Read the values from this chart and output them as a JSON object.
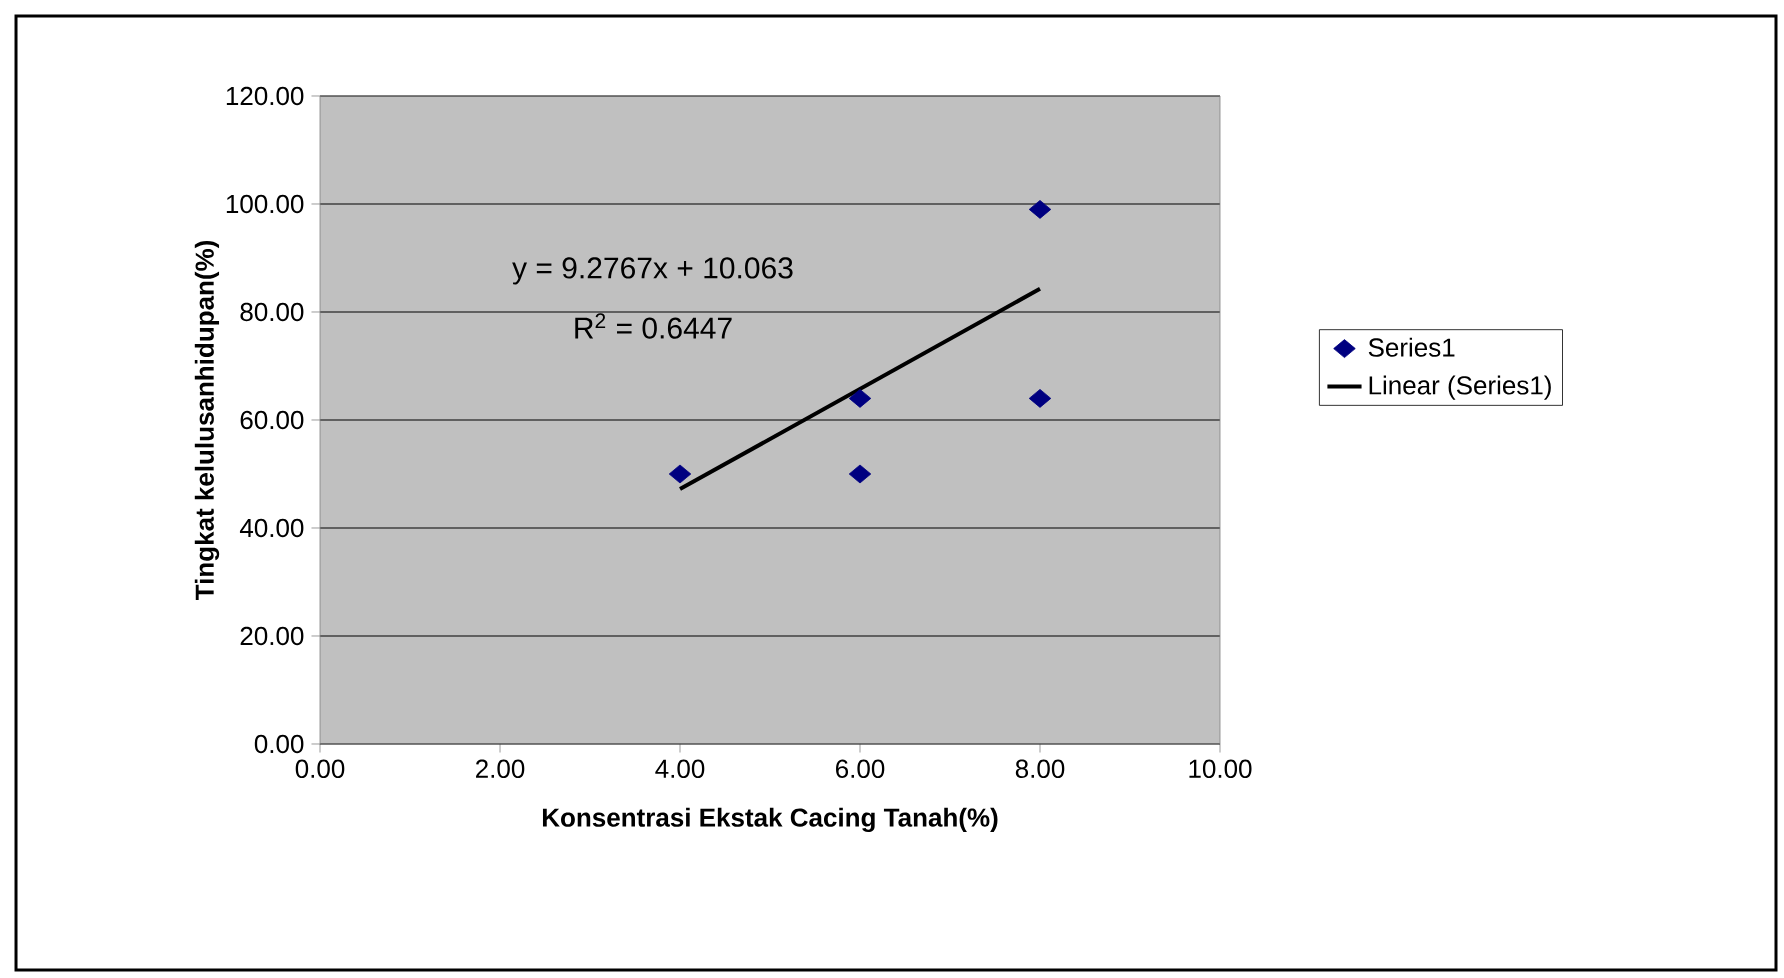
{
  "chart_data": {
    "type": "scatter",
    "xlabel": "Konsentrasi Ekstak Cacing Tanah(%)",
    "ylabel": "Tingkat kelulusanhidupan(%)",
    "series": [
      {
        "name": "Series1",
        "type": "scatter",
        "color": "#000080",
        "marker": "diamond",
        "x": [
          4,
          6,
          6,
          8,
          8
        ],
        "values": [
          50,
          64,
          50,
          99,
          64
        ]
      },
      {
        "name": "Linear (Series1)",
        "type": "line",
        "color": "#000000",
        "marker": "none",
        "line_style": "solid",
        "x": [
          4,
          8
        ],
        "values": [
          47.2,
          84.3
        ]
      }
    ],
    "annotations": [
      "y = 9.2767x + 10.063",
      "R$^{2}$ = 0.6447"
    ],
    "xlim": [
      0,
      10
    ],
    "xticks": [
      {
        "value": 0,
        "label": "0.00"
      },
      {
        "value": 2,
        "label": "2.00"
      },
      {
        "value": 4,
        "label": "4.00"
      },
      {
        "value": 6,
        "label": "6.00"
      },
      {
        "value": 8,
        "label": "8.00"
      },
      {
        "value": 10,
        "label": "10.00"
      }
    ],
    "ylim": [
      0,
      120
    ],
    "yticks": [
      {
        "value": 0,
        "label": "0.00"
      },
      {
        "value": 20,
        "label": "20.00"
      },
      {
        "value": 40,
        "label": "40.00"
      },
      {
        "value": 60,
        "label": "60.00"
      },
      {
        "value": 80,
        "label": "80.00"
      },
      {
        "value": 100,
        "label": "100.00"
      },
      {
        "value": 120,
        "label": "120.00"
      }
    ],
    "grid": "y",
    "legend": "right"
  }
}
